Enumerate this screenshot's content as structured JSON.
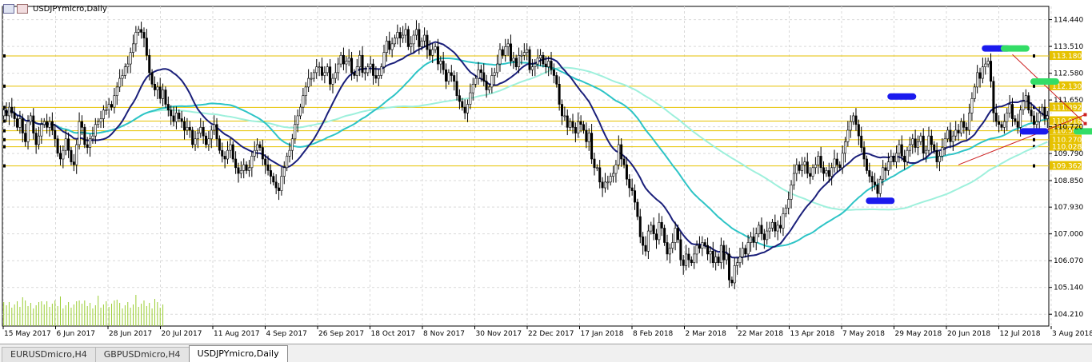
{
  "window": {
    "title": "USDJPYmicro,Daily"
  },
  "tabs": [
    {
      "label": "EURUSDmicro,H4",
      "active": false
    },
    {
      "label": "GBPUSDmicro,H4",
      "active": false
    },
    {
      "label": "USDJPYmicro,Daily",
      "active": true
    }
  ],
  "colors": {
    "bull": "#000000",
    "bear": "#000000",
    "level": "#e6c200",
    "level_label_bg": "#e6c200",
    "ma_fast": "#1a1f7a",
    "ma_mid": "#2ec4c6",
    "ma_slow": "#9ef0dc",
    "trend": "#cc1f1f",
    "pivot": "#1a1aee",
    "green": "#33dd66",
    "volume": "#9acd32",
    "grid": "#d9d9d9"
  },
  "chart_data": {
    "type": "candlestick",
    "symbol": "USDJPYmicro",
    "timeframe": "Daily",
    "ylim": [
      103.8,
      114.9
    ],
    "y_ticks": [
      "114.440",
      "113.510",
      "112.580",
      "111.650",
      "110.720",
      "109.790",
      "108.850",
      "107.930",
      "107.000",
      "106.070",
      "105.140",
      "104.210"
    ],
    "x_ticks": [
      "15 May 2017",
      "6 Jun 2017",
      "28 Jun 2017",
      "20 Jul 2017",
      "11 Aug 2017",
      "4 Sep 2017",
      "26 Sep 2017",
      "18 Oct 2017",
      "8 Nov 2017",
      "30 Nov 2017",
      "22 Dec 2017",
      "17 Jan 2018",
      "8 Feb 2018",
      "2 Mar 2018",
      "22 Mar 2018",
      "13 Apr 2018",
      "7 May 2018",
      "29 May 2018",
      "20 Jun 2018",
      "12 Jul 2018",
      "3 Aug 2018"
    ],
    "levels": [
      "113.180",
      "112.130",
      "111.392",
      "110.918",
      "110.581",
      "110.270",
      "110.028",
      "109.362"
    ],
    "closes": [
      111.3,
      111.1,
      111.4,
      111.2,
      111.0,
      110.7,
      111.0,
      110.5,
      110.2,
      110.9,
      111.1,
      110.5,
      110.1,
      110.4,
      110.8,
      110.9,
      110.7,
      110.9,
      110.6,
      110.3,
      109.8,
      109.6,
      109.9,
      110.3,
      109.9,
      109.5,
      109.4,
      110.1,
      110.9,
      110.7,
      110.1,
      110.0,
      110.3,
      110.4,
      110.8,
      110.9,
      111.0,
      111.3,
      111.3,
      111.5,
      111.4,
      111.8,
      112.1,
      112.4,
      112.5,
      112.8,
      112.9,
      113.3,
      113.6,
      114.0,
      114.1,
      114.0,
      113.8,
      113.2,
      112.6,
      112.2,
      112.0,
      112.1,
      111.7,
      112.0,
      111.5,
      111.3,
      111.1,
      110.9,
      111.2,
      111.0,
      110.9,
      110.6,
      110.7,
      110.6,
      110.1,
      110.3,
      110.5,
      110.7,
      110.4,
      110.1,
      110.3,
      110.6,
      110.8,
      110.3,
      109.9,
      109.7,
      109.6,
      109.9,
      110.1,
      109.6,
      109.3,
      109.1,
      109.2,
      109.4,
      109.2,
      109.3,
      109.7,
      109.9,
      110.1,
      110.0,
      109.6,
      109.4,
      109.2,
      109.0,
      108.8,
      108.6,
      108.5,
      109.0,
      109.3,
      109.7,
      109.9,
      110.3,
      110.8,
      111.1,
      111.4,
      111.8,
      112.1,
      112.4,
      112.4,
      112.6,
      112.8,
      112.8,
      112.5,
      112.6,
      112.8,
      112.2,
      112.4,
      112.6,
      112.9,
      113.2,
      112.9,
      113.0,
      113.1,
      112.6,
      112.5,
      112.8,
      113.2,
      112.6,
      112.6,
      112.8,
      112.9,
      112.5,
      112.4,
      112.5,
      112.8,
      113.3,
      113.7,
      113.4,
      113.6,
      113.8,
      114.0,
      113.8,
      113.9,
      114.1,
      113.5,
      113.6,
      113.9,
      114.1,
      113.5,
      113.7,
      113.9,
      113.4,
      113.2,
      113.4,
      113.5,
      112.9,
      113.0,
      112.7,
      112.3,
      112.6,
      112.5,
      112.3,
      111.8,
      111.6,
      111.4,
      111.2,
      111.5,
      111.9,
      112.2,
      112.4,
      112.7,
      112.6,
      112.3,
      112.0,
      112.1,
      112.5,
      112.6,
      112.9,
      113.4,
      113.2,
      113.5,
      113.6,
      113.0,
      113.1,
      112.8,
      113.2,
      113.2,
      113.3,
      113.4,
      112.7,
      112.8,
      112.9,
      113.1,
      113.2,
      112.9,
      112.8,
      113.0,
      112.7,
      112.5,
      112.2,
      111.5,
      111.1,
      111.1,
      110.7,
      110.9,
      110.7,
      110.5,
      110.9,
      110.8,
      110.6,
      110.2,
      110.5,
      109.6,
      109.3,
      109.3,
      108.8,
      108.6,
      108.8,
      108.8,
      109.0,
      109.1,
      109.4,
      110.1,
      109.6,
      109.4,
      108.9,
      108.6,
      108.5,
      108.1,
      107.6,
      106.9,
      106.6,
      106.4,
      107.1,
      107.3,
      107.0,
      106.8,
      107.4,
      107.2,
      106.7,
      106.3,
      106.5,
      106.7,
      107.2,
      106.8,
      106.1,
      105.9,
      106.3,
      106.1,
      106.0,
      106.3,
      106.6,
      106.5,
      106.7,
      106.6,
      106.3,
      106.4,
      106.0,
      106.2,
      106.0,
      106.6,
      106.1,
      106.3,
      105.4,
      105.3,
      105.9,
      106.0,
      106.2,
      106.5,
      106.3,
      106.7,
      106.9,
      106.7,
      107.0,
      107.3,
      107.0,
      106.8,
      107.1,
      107.2,
      107.4,
      107.1,
      107.3,
      107.2,
      107.7,
      107.9,
      108.2,
      108.7,
      109.1,
      109.4,
      109.2,
      109.4,
      109.5,
      109.1,
      109.0,
      109.3,
      109.4,
      109.7,
      109.3,
      109.1,
      109.2,
      109.0,
      109.3,
      109.6,
      109.4,
      109.3,
      109.8,
      110.2,
      110.6,
      110.9,
      111.1,
      110.8,
      110.4,
      110.0,
      109.6,
      109.2,
      109.0,
      108.8,
      108.7,
      108.4,
      108.9,
      109.3,
      109.2,
      109.5,
      109.7,
      109.5,
      109.8,
      110.1,
      109.7,
      109.5,
      109.9,
      110.1,
      110.3,
      110.0,
      110.2,
      110.4,
      109.8,
      109.9,
      110.4,
      110.1,
      109.9,
      109.5,
      109.7,
      110.0,
      110.3,
      110.6,
      110.2,
      110.4,
      110.6,
      110.5,
      110.9,
      110.7,
      110.6,
      111.2,
      111.7,
      112.1,
      112.6,
      112.4,
      112.8,
      112.9,
      113.0,
      112.3,
      111.2,
      110.9,
      110.8,
      110.7,
      110.9,
      111.2,
      111.5,
      111.0,
      110.9,
      110.7,
      111.3,
      111.6,
      111.8,
      111.3,
      111.1,
      110.8,
      110.9,
      111.2,
      111.4,
      111.0,
      111.1
    ],
    "pivot_markers": [
      {
        "x_index": 368,
        "price": 113.44,
        "color": "blue"
      },
      {
        "x_index": 375,
        "price": 113.44,
        "color": "green"
      },
      {
        "x_index": 386,
        "price": 112.29,
        "color": "green"
      },
      {
        "x_index": 333,
        "price": 111.77,
        "color": "blue"
      },
      {
        "x_index": 382,
        "price": 110.56,
        "color": "blue"
      },
      {
        "x_index": 402,
        "price": 110.56,
        "color": "green"
      },
      {
        "x_index": 325,
        "price": 108.15,
        "color": "blue"
      }
    ],
    "trend_lines": [
      {
        "x1_index": 374,
        "p1": 113.23,
        "x2_index": 401,
        "p2": 110.83
      },
      {
        "x1_index": 354,
        "p1": 109.4,
        "x2_index": 401,
        "p2": 111.14
      }
    ],
    "ma_fast_period_bars": 20,
    "ma_mid_period_bars": 50,
    "ma_slow_period_bars": 100
  }
}
